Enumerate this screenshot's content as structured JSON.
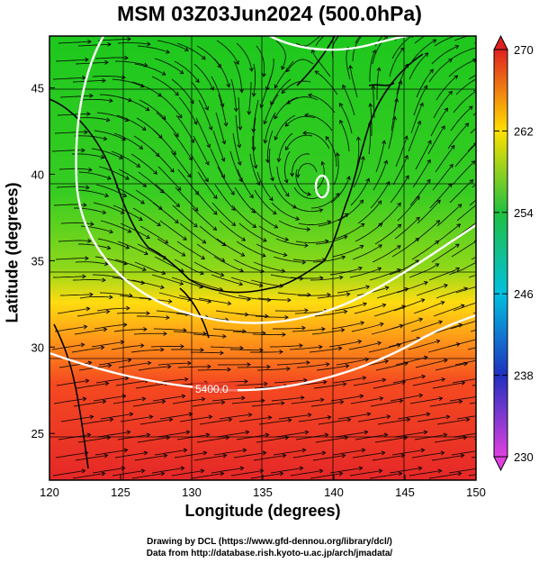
{
  "title": "MSM 03Z03Jun2024 (500.0hPa)",
  "xlabel": "Longitude (degrees)",
  "ylabel": "Latitude  (degrees)",
  "x_ticks": [
    120,
    125,
    130,
    135,
    140,
    145,
    150
  ],
  "y_ticks": [
    25,
    30,
    35,
    40,
    45
  ],
  "colorbar": {
    "ticks": [
      230,
      238,
      246,
      254,
      262,
      270
    ],
    "min": 230,
    "max": 270,
    "colors": [
      "#e040e0",
      "#2030c0",
      "#00c0e0",
      "#20c040",
      "#ffe000",
      "#e02020"
    ]
  },
  "contour_label": "5400.0",
  "credits": {
    "line1": "Drawing by DCL (https://www.gfd-dennou.org/library/dcl/)",
    "line2": "Data from http://database.rish.kyoto-u.ac.jp/arch/jmadata/"
  }
}
